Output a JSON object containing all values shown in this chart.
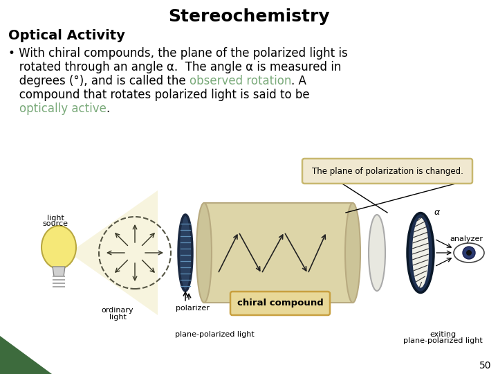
{
  "title": "Stereochemistry",
  "subtitle": "Optical Activity",
  "title_fontsize": 18,
  "subtitle_fontsize": 14,
  "bullet_fontsize": 12,
  "bg_color": "#ffffff",
  "text_color": "#000000",
  "green_color": "#7aaa7a",
  "title_font_weight": "bold",
  "subtitle_font_weight": "bold",
  "page_number": "50",
  "bottom_bar_color": "#3d6b3d",
  "diagram_bg": "#ede8d0",
  "note_box_bg": "#f0e8d0",
  "note_box_edge": "#c8b870",
  "chiral_box_bg": "#e8d898",
  "chiral_box_edge": "#c8a040",
  "bulb_color": "#f5e878",
  "bulb_edge": "#b8a840",
  "polarizer_color": "#2a4060",
  "polarizer_edge": "#1a2840",
  "tube_body": "#ddd5a8",
  "tube_end": "#c8c090",
  "exit_disc": "#d0d0c8",
  "analyzer_color": "#1e3050",
  "analyzer_inner": "#c8c8b8",
  "arrow_color": "#222222",
  "label_fontsize": 8,
  "note_fontsize": 8.5
}
